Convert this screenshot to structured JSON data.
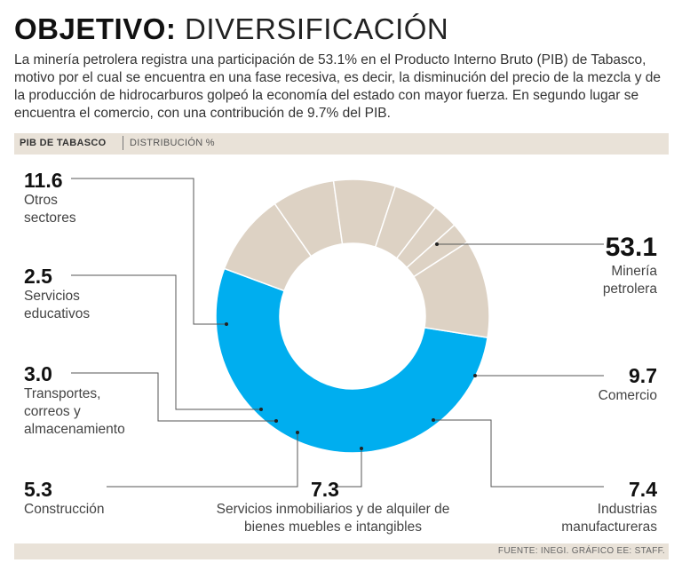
{
  "header": {
    "title_bold": "OBJETIVO:",
    "title_light": "DIVERSIFICACIÓN"
  },
  "intro": "La minería petrolera registra una participación de 53.1% en el Producto Interno Bruto (PIB) de Tabasco, motivo por el cual se encuentra en una fase recesiva, es decir, la disminución del precio de la mezcla y de la producción de hidrocarburos golpeó la economía del estado con mayor fuerza. En segundo lugar se encuentra el comercio, con una contribución de 9.7% del PIB.",
  "chart_header": {
    "label": "PIB DE TABASCO",
    "sublabel": "DISTRIBUCIÓN %"
  },
  "source": "FUENTE: INEGI.  GRÁFICO EE: STAFF.",
  "colors": {
    "highlight": "#00aeef",
    "others": "#ddd2c4",
    "separator": "#ffffff",
    "leader": "#555555"
  },
  "chart_data": {
    "type": "pie",
    "donut": true,
    "title": "PIB DE TABASCO | DISTRIBUCIÓN %",
    "units": "%",
    "slices": [
      {
        "label": "Minería petrolera",
        "value": 53.1
      },
      {
        "label": "Comercio",
        "value": 9.7
      },
      {
        "label": "Industrias manufactureras",
        "value": 7.4
      },
      {
        "label": "Servicios inmobiliarios y de alquiler de bienes muebles e intangibles",
        "value": 7.3
      },
      {
        "label": "Construcción",
        "value": 5.3
      },
      {
        "label": "Transportes, correos y almacenamiento",
        "value": 3.0
      },
      {
        "label": "Servicios educativos",
        "value": 2.5
      },
      {
        "label": "Otros sectores",
        "value": 11.6
      }
    ],
    "labels": [
      {
        "value": "53.1",
        "name": "Minería petrolera"
      },
      {
        "value": "9.7",
        "name": "Comercio"
      },
      {
        "value": "7.4",
        "name": "Industrias manufactureras"
      },
      {
        "value": "7.3",
        "name": "Servicios inmobiliarios y de alquiler de bienes muebles e intangibles"
      },
      {
        "value": "5.3",
        "name": "Construcción"
      },
      {
        "value": "3.0",
        "name": "Transportes, correos y almacenamiento"
      },
      {
        "value": "2.5",
        "name": "Servicios educativos"
      },
      {
        "value": "11.6",
        "name": "Otros sectores"
      }
    ]
  }
}
